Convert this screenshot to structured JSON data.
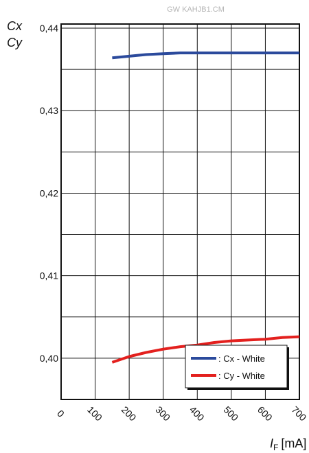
{
  "header_text": "GW KAHJB1.CM",
  "chart_data": {
    "type": "line",
    "ylabel_lines": [
      "Cx",
      "Cy"
    ],
    "xlabel": "I",
    "xlabel_subscript": "F",
    "xlabel_unit": "[mA]",
    "xlim": [
      0,
      700
    ],
    "ylim": [
      0.395,
      0.4405
    ],
    "x_ticks": [
      0,
      100,
      200,
      300,
      400,
      500,
      600,
      700
    ],
    "x_tick_labels": [
      "0",
      "100",
      "200",
      "300",
      "400",
      "500",
      "600",
      "700"
    ],
    "y_ticks": [
      0.4,
      0.41,
      0.42,
      0.43,
      0.44
    ],
    "y_tick_labels": [
      "0,40",
      "0,41",
      "0,42",
      "0,43",
      "0,44"
    ],
    "y_gridlines": [
      0.395,
      0.4,
      0.405,
      0.41,
      0.415,
      0.42,
      0.425,
      0.43,
      0.435,
      0.44
    ],
    "grid": true,
    "legend_position": "bottom-right",
    "series": [
      {
        "name": ": Cx - White",
        "color": "#2b4a9c",
        "x": [
          150,
          200,
          250,
          300,
          350,
          400,
          500,
          600,
          700
        ],
        "y": [
          0.4364,
          0.4366,
          0.4368,
          0.4369,
          0.437,
          0.437,
          0.437,
          0.437,
          0.437
        ]
      },
      {
        "name": ": Cy - White",
        "color": "#e3201e",
        "x": [
          150,
          200,
          250,
          300,
          350,
          400,
          450,
          500,
          550,
          600,
          650,
          700
        ],
        "y": [
          0.3995,
          0.4002,
          0.4007,
          0.4011,
          0.4014,
          0.4016,
          0.4019,
          0.4021,
          0.4022,
          0.4023,
          0.4025,
          0.4026
        ]
      }
    ]
  }
}
